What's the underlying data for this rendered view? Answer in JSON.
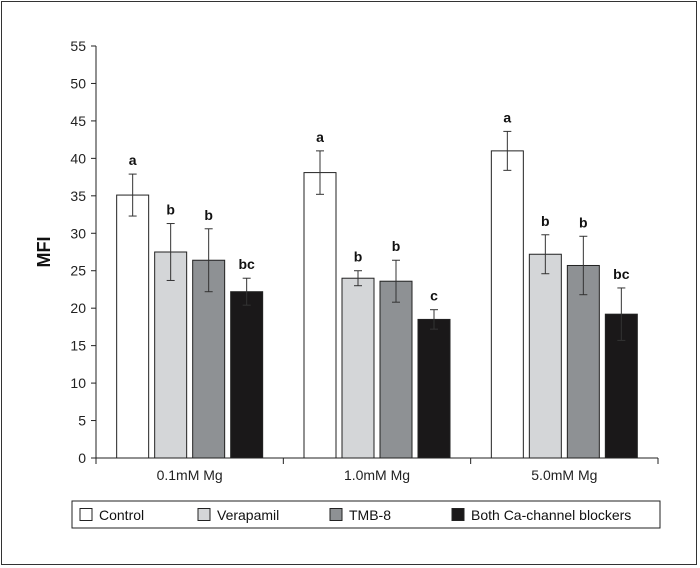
{
  "chart_data": {
    "type": "bar",
    "title": "",
    "xlabel": "",
    "ylabel": "MFI",
    "ylim": [
      0,
      55
    ],
    "yticks": [
      0,
      5,
      10,
      15,
      20,
      25,
      30,
      35,
      40,
      45,
      50,
      55
    ],
    "categories": [
      "0.1mM Mg",
      "1.0mM Mg",
      "5.0mM Mg"
    ],
    "legend_position": "bottom",
    "grid": false,
    "series": [
      {
        "name": "Control",
        "color": "#ffffff",
        "values": [
          35.1,
          38.1,
          41.0
        ],
        "errors": [
          2.8,
          2.9,
          2.6
        ],
        "sig_labels": [
          "a",
          "a",
          "a"
        ]
      },
      {
        "name": "Verapamil",
        "color": "#d4d6d8",
        "values": [
          27.5,
          24.0,
          27.2
        ],
        "errors": [
          3.8,
          1.0,
          2.6
        ],
        "sig_labels": [
          "b",
          "b",
          "b"
        ]
      },
      {
        "name": "TMB-8",
        "color": "#8e9194",
        "values": [
          26.4,
          23.6,
          25.7
        ],
        "errors": [
          4.2,
          2.8,
          3.9
        ],
        "sig_labels": [
          "b",
          "b",
          "b"
        ]
      },
      {
        "name": "Both Ca-channel blockers",
        "color": "#1a1819",
        "values": [
          22.2,
          18.5,
          19.2
        ],
        "errors": [
          1.8,
          1.3,
          3.5
        ],
        "sig_labels": [
          "bc",
          "c",
          "bc"
        ]
      }
    ]
  }
}
